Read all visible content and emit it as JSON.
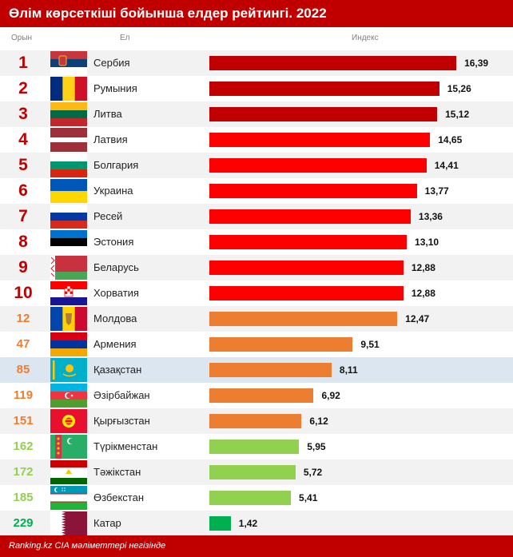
{
  "chart_data": {
    "type": "bar",
    "title": "Өлім көрсеткіші бойынша елдер рейтингі. 2022",
    "columns": {
      "rank": "Орын",
      "country": "Ел",
      "index": "Индекс"
    },
    "categories": [
      "Сербия",
      "Румыния",
      "Литва",
      "Латвия",
      "Болгария",
      "Украина",
      "Ресей",
      "Эстония",
      "Беларусь",
      "Хорватия",
      "Молдова",
      "Армения",
      "Қазақстан",
      "Әзірбайжан",
      "Қырғызстан",
      "Түрікменстан",
      "Тәжікстан",
      "Өзбекстан",
      "Катар"
    ],
    "values": [
      16.39,
      15.26,
      15.12,
      14.65,
      14.41,
      13.77,
      13.36,
      13.1,
      12.88,
      12.88,
      12.47,
      9.51,
      8.11,
      6.92,
      6.12,
      5.95,
      5.72,
      5.41,
      1.42
    ],
    "xlim": [
      0,
      17.5
    ],
    "rows": [
      {
        "rank": "1",
        "country": "Сербия",
        "value": 16.39,
        "label": "16,39",
        "flag": "serbia-flag-icon",
        "bar_color": "#c00000",
        "rank_color": "#c00000"
      },
      {
        "rank": "2",
        "country": "Румыния",
        "value": 15.26,
        "label": "15,26",
        "flag": "romania-flag-icon",
        "bar_color": "#c00000",
        "rank_color": "#c00000"
      },
      {
        "rank": "3",
        "country": "Литва",
        "value": 15.12,
        "label": "15,12",
        "flag": "lithuania-flag-icon",
        "bar_color": "#c00000",
        "rank_color": "#c00000"
      },
      {
        "rank": "4",
        "country": "Латвия",
        "value": 14.65,
        "label": "14,65",
        "flag": "latvia-flag-icon",
        "bar_color": "#ff0000",
        "rank_color": "#c00000"
      },
      {
        "rank": "5",
        "country": "Болгария",
        "value": 14.41,
        "label": "14,41",
        "flag": "bulgaria-flag-icon",
        "bar_color": "#ff0000",
        "rank_color": "#c00000"
      },
      {
        "rank": "6",
        "country": "Украина",
        "value": 13.77,
        "label": "13,77",
        "flag": "ukraine-flag-icon",
        "bar_color": "#ff0000",
        "rank_color": "#c00000"
      },
      {
        "rank": "7",
        "country": "Ресей",
        "value": 13.36,
        "label": "13,36",
        "flag": "russia-flag-icon",
        "bar_color": "#ff0000",
        "rank_color": "#c00000"
      },
      {
        "rank": "8",
        "country": "Эстония",
        "value": 13.1,
        "label": "13,10",
        "flag": "estonia-flag-icon",
        "bar_color": "#ff0000",
        "rank_color": "#c00000"
      },
      {
        "rank": "9",
        "country": "Беларусь",
        "value": 12.88,
        "label": "12,88",
        "flag": "belarus-flag-icon",
        "bar_color": "#ff0000",
        "rank_color": "#c00000"
      },
      {
        "rank": "10",
        "country": "Хорватия",
        "value": 12.88,
        "label": "12,88",
        "flag": "croatia-flag-icon",
        "bar_color": "#ff0000",
        "rank_color": "#c00000"
      },
      {
        "rank": "12",
        "country": "Молдова",
        "value": 12.47,
        "label": "12,47",
        "flag": "moldova-flag-icon",
        "bar_color": "#ed7d31",
        "rank_color": "#ed7d31"
      },
      {
        "rank": "47",
        "country": "Армения",
        "value": 9.51,
        "label": "9,51",
        "flag": "armenia-flag-icon",
        "bar_color": "#ed7d31",
        "rank_color": "#ed7d31"
      },
      {
        "rank": "85",
        "country": "Қазақстан",
        "value": 8.11,
        "label": "8,11",
        "flag": "kazakhstan-flag-icon",
        "bar_color": "#ed7d31",
        "rank_color": "#ed7d31",
        "highlight": true
      },
      {
        "rank": "119",
        "country": "Әзірбайжан",
        "value": 6.92,
        "label": "6,92",
        "flag": "azerbaijan-flag-icon",
        "bar_color": "#ed7d31",
        "rank_color": "#ed7d31"
      },
      {
        "rank": "151",
        "country": "Қырғызстан",
        "value": 6.12,
        "label": "6,12",
        "flag": "kyrgyzstan-flag-icon",
        "bar_color": "#ed7d31",
        "rank_color": "#ed7d31"
      },
      {
        "rank": "162",
        "country": "Түрікменстан",
        "value": 5.95,
        "label": "5,95",
        "flag": "turkmenistan-flag-icon",
        "bar_color": "#92d050",
        "rank_color": "#92d050"
      },
      {
        "rank": "172",
        "country": "Тәжікстан",
        "value": 5.72,
        "label": "5,72",
        "flag": "tajikistan-flag-icon",
        "bar_color": "#92d050",
        "rank_color": "#92d050"
      },
      {
        "rank": "185",
        "country": "Өзбекстан",
        "value": 5.41,
        "label": "5,41",
        "flag": "uzbekistan-flag-icon",
        "bar_color": "#92d050",
        "rank_color": "#92d050"
      },
      {
        "rank": "229",
        "country": "Катар",
        "value": 1.42,
        "label": "1,42",
        "flag": "qatar-flag-icon",
        "bar_color": "#00b050",
        "rank_color": "#00b050"
      }
    ],
    "grid": false,
    "legend": "none"
  },
  "footer": "Ranking.kz CIA мәліметтері негізінде"
}
